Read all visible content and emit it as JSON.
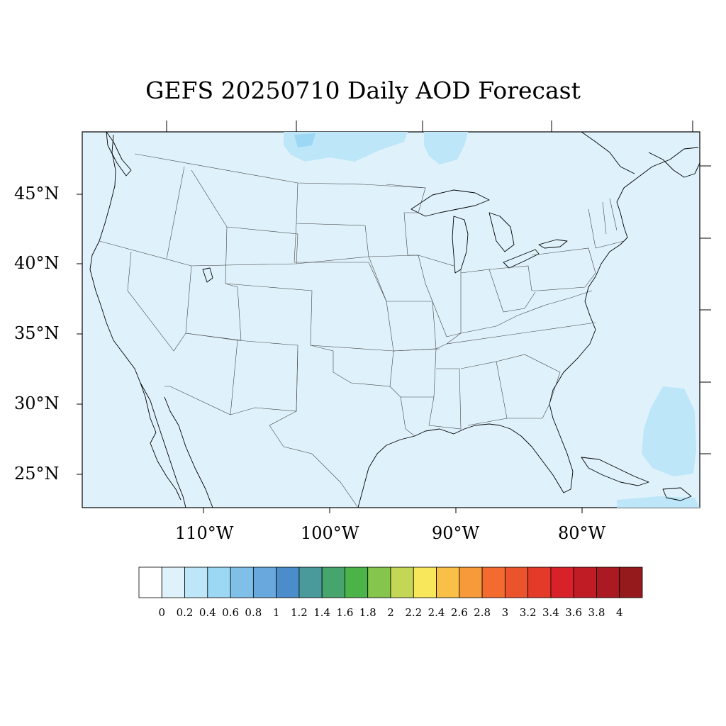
{
  "title": "GEFS 20250710 Daily AOD Forecast",
  "map": {
    "projection": "lambert-conformal",
    "region": "CONUS",
    "background_color": "#dff2fb",
    "lat_labels": [
      "45°N",
      "40°N",
      "35°N",
      "30°N",
      "25°N"
    ],
    "lon_labels": [
      "110°W",
      "100°W",
      "90°W",
      "80°W"
    ],
    "aod_field": {
      "domain_value": "0-0.2",
      "features": [
        {
          "region": "northern Montana / southern Canada",
          "value_range": "0.2-0.4"
        },
        {
          "region": "northern Minnesota / southern Canada",
          "value_range": "0.2-0.4"
        },
        {
          "region": "Atlantic east of Florida",
          "value_range": "0.2-0.4"
        },
        {
          "region": "Caribbean south of Cuba",
          "value_range": "0.2-0.4"
        }
      ]
    }
  },
  "colorbar": {
    "labels": [
      "0",
      "0.2",
      "0.4",
      "0.6",
      "0.8",
      "1",
      "1.2",
      "1.4",
      "1.6",
      "1.8",
      "2",
      "2.2",
      "2.4",
      "2.6",
      "2.8",
      "3",
      "3.2",
      "3.4",
      "3.6",
      "3.8",
      "4"
    ],
    "colors": [
      "#ffffff",
      "#dff2fb",
      "#bde6f8",
      "#9cd8f4",
      "#80c0e8",
      "#68a8dd",
      "#4a8dca",
      "#4a9a9c",
      "#46a56c",
      "#4bb449",
      "#86c54c",
      "#c4d656",
      "#f8e75b",
      "#f9bf47",
      "#f69a3a",
      "#f36b2e",
      "#ea532c",
      "#e43a2a",
      "#d92129",
      "#c01c26",
      "#ab1a22",
      "#941a1c"
    ]
  }
}
